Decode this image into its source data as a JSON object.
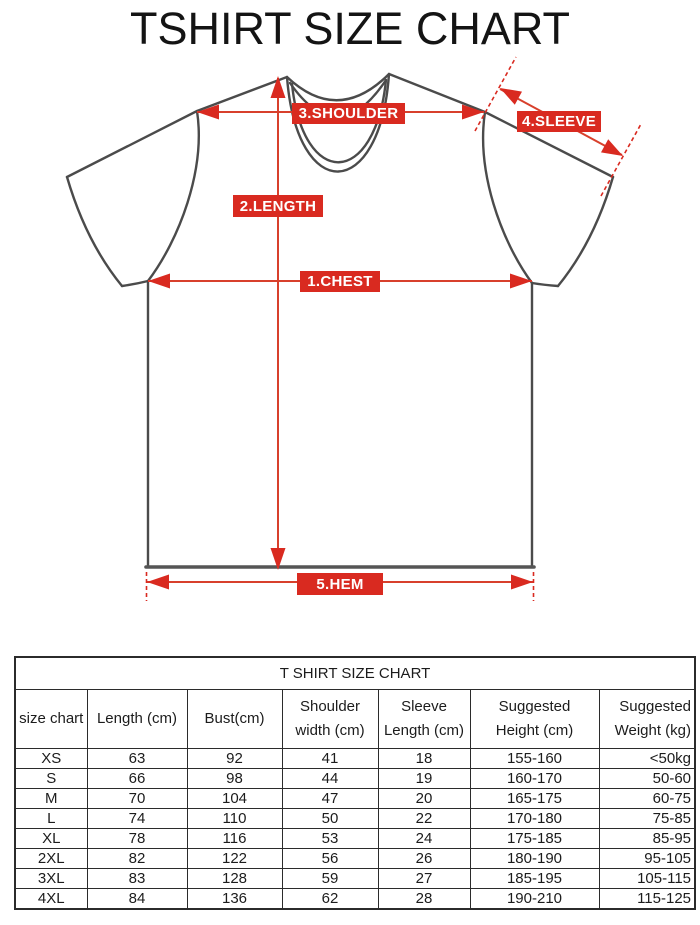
{
  "title": "TSHIRT SIZE CHART",
  "diagram": {
    "labels": {
      "chest": "1.CHEST",
      "length": "2.LENGTH",
      "shoulder": "3.SHOULDER",
      "sleeve": "4.SLEEVE",
      "hem": "5.HEM"
    },
    "colors": {
      "label_background": "#d92a20",
      "arrow_line": "#d8402c",
      "shirt_outline": "#4b4b4b"
    }
  },
  "size_table": {
    "title": "T SHIRT SIZE CHART",
    "columns": [
      {
        "lines": [
          "size chart"
        ]
      },
      {
        "lines": [
          "Length (cm)"
        ]
      },
      {
        "lines": [
          "Bust(cm)"
        ]
      },
      {
        "lines": [
          "Shoulder",
          "width (cm)"
        ]
      },
      {
        "lines": [
          "Sleeve",
          "Length (cm)"
        ]
      },
      {
        "lines": [
          "Suggested",
          "Height (cm)"
        ]
      },
      {
        "lines": [
          "Suggested",
          "Weight (kg)"
        ]
      }
    ],
    "rows": [
      [
        "XS",
        "63",
        "92",
        "41",
        "18",
        "155-160",
        "<50kg"
      ],
      [
        "S",
        "66",
        "98",
        "44",
        "19",
        "160-170",
        "50-60"
      ],
      [
        "M",
        "70",
        "104",
        "47",
        "20",
        "165-175",
        "60-75"
      ],
      [
        "L",
        "74",
        "110",
        "50",
        "22",
        "170-180",
        "75-85"
      ],
      [
        "XL",
        "78",
        "116",
        "53",
        "24",
        "175-185",
        "85-95"
      ],
      [
        "2XL",
        "82",
        "122",
        "56",
        "26",
        "180-190",
        "95-105"
      ],
      [
        "3XL",
        "83",
        "128",
        "59",
        "27",
        "185-195",
        "105-115"
      ],
      [
        "4XL",
        "84",
        "136",
        "62",
        "28",
        "190-210",
        "115-125"
      ]
    ]
  }
}
